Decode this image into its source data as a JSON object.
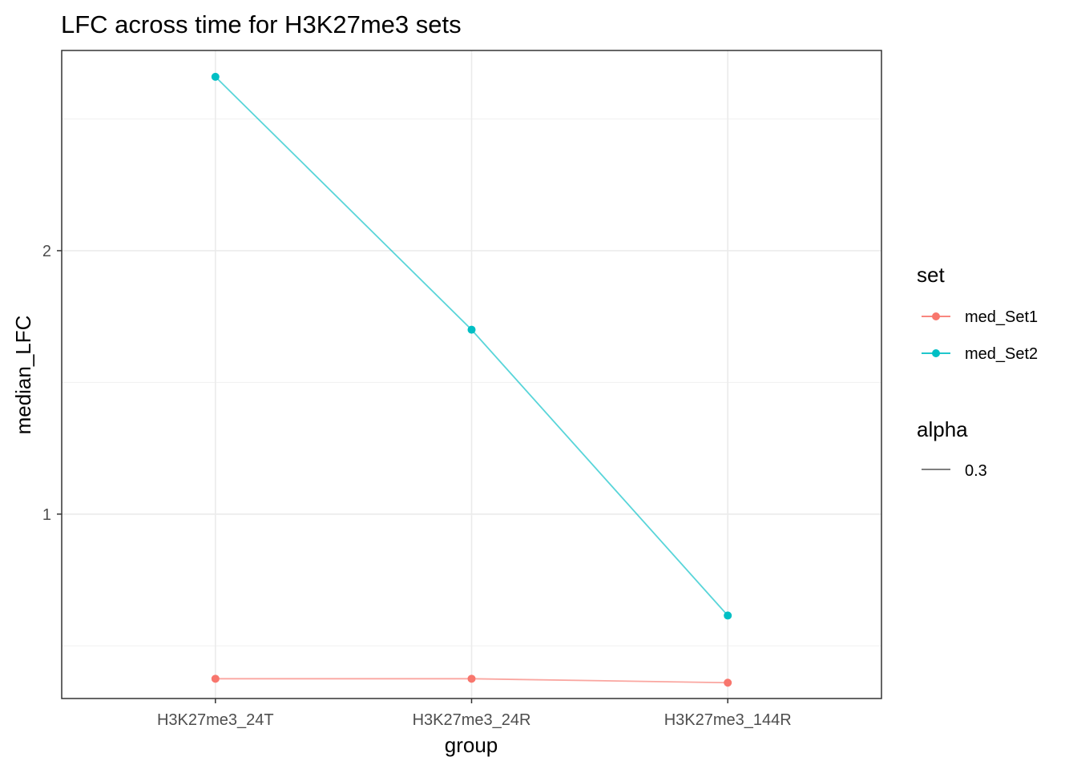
{
  "chart_data": {
    "type": "line",
    "title": "LFC across time for H3K27me3 sets",
    "xlabel": "group",
    "ylabel": "median_LFC",
    "categories": [
      "H3K27me3_24T",
      "H3K27me3_24R",
      "H3K27me3_144R"
    ],
    "ylim": [
      0.3,
      2.76
    ],
    "y_ticks": [
      1,
      2
    ],
    "y_tick_labels": [
      "1",
      "2"
    ],
    "grid": true,
    "series": [
      {
        "name": "med_Set1",
        "color": "#F8766D",
        "values": [
          0.375,
          0.375,
          0.36
        ]
      },
      {
        "name": "med_Set2",
        "color": "#00BFC4",
        "values": [
          2.66,
          1.7,
          0.615
        ]
      }
    ],
    "legend": {
      "placement": "right",
      "color_title": "set",
      "alpha_title": "alpha",
      "alpha_label": "0.3"
    }
  }
}
